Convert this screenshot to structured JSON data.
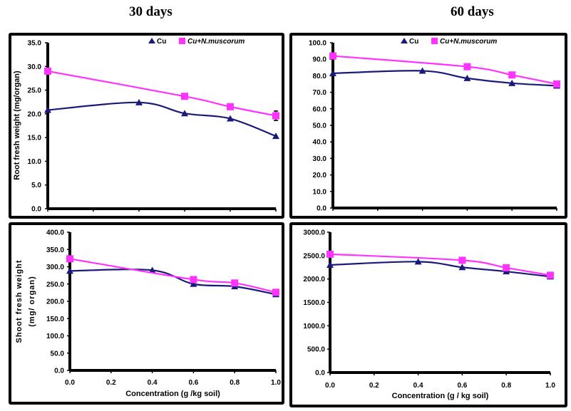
{
  "column_titles": [
    "30 days",
    "60 days"
  ],
  "colors": {
    "cu": "#1a1a7a",
    "cu_nm": "#ff33ff",
    "axis": "#000000"
  },
  "chart_data": [
    {
      "id": "root-30",
      "type": "line",
      "title": "30 days",
      "xlabel": "",
      "ylabel": "Root fresh weight (mg/organ)",
      "xlim": [
        0,
        1.0
      ],
      "ylim": [
        0,
        35
      ],
      "yticks": [
        0,
        5,
        10,
        15,
        20,
        25,
        30,
        35
      ],
      "ytick_labels": [
        "0.0",
        "5.0",
        "10.0",
        "15.0",
        "20.0",
        "25.0",
        "30.0",
        "35.0"
      ],
      "xticks": [
        0,
        0.2,
        0.4,
        0.6,
        0.8,
        1.0
      ],
      "xtick_labels": [],
      "grid": false,
      "legend": {
        "position": "top-right",
        "entries": [
          "Cu",
          "Cu+N.muscorum"
        ]
      },
      "series": [
        {
          "name": "Cu",
          "marker": "triangle",
          "x": [
            0,
            0.4,
            0.6,
            0.8,
            1.0
          ],
          "values": [
            20.8,
            22.4,
            20.1,
            19.0,
            15.3
          ]
        },
        {
          "name": "Cu+N.muscorum",
          "marker": "square",
          "x": [
            0,
            0.6,
            0.8,
            1.0
          ],
          "values": [
            29.0,
            23.7,
            21.5,
            19.6
          ],
          "error": [
            0,
            0,
            0,
            1.0
          ]
        }
      ]
    },
    {
      "id": "root-60",
      "type": "line",
      "title": "60 days",
      "xlabel": "",
      "ylabel": "",
      "xlim": [
        0,
        1.0
      ],
      "ylim": [
        0,
        100
      ],
      "yticks": [
        0,
        10,
        20,
        30,
        40,
        50,
        60,
        70,
        80,
        90,
        100
      ],
      "ytick_labels": [
        "0.0",
        "10.0",
        "20.0",
        "30.0",
        "40.0",
        "50.0",
        "60.0",
        "70.0",
        "80.0",
        "90.0",
        "100.0"
      ],
      "xticks": [
        0,
        0.2,
        0.4,
        0.6,
        0.8,
        1.0
      ],
      "xtick_labels": [],
      "grid": false,
      "legend": {
        "position": "top-right",
        "entries": [
          "Cu",
          "Cu+N.muscorum"
        ]
      },
      "series": [
        {
          "name": "Cu",
          "marker": "triangle",
          "x": [
            0,
            0.4,
            0.6,
            0.8,
            1.0
          ],
          "values": [
            81.5,
            83.0,
            78.5,
            75.5,
            74.0
          ]
        },
        {
          "name": "Cu+N.muscorum",
          "marker": "square",
          "x": [
            0,
            0.6,
            0.8,
            1.0
          ],
          "values": [
            92.0,
            85.5,
            80.5,
            75.0
          ]
        }
      ]
    },
    {
      "id": "shoot-30",
      "type": "line",
      "title": "",
      "xlabel": "Concentration (g /kg soil)",
      "ylabel": "Shoot fresh weight (mg/ organ)",
      "xlim": [
        0,
        1.0
      ],
      "ylim": [
        0,
        400
      ],
      "yticks": [
        0,
        50,
        100,
        150,
        200,
        250,
        300,
        350,
        400
      ],
      "ytick_labels": [
        "0.0",
        "50.0",
        "100.0",
        "150.0",
        "200.0",
        "250.0",
        "300.0",
        "350.0",
        "400.0"
      ],
      "xticks": [
        0,
        0.2,
        0.4,
        0.6,
        0.8,
        1.0
      ],
      "xtick_labels": [
        "0.0",
        "0.2",
        "0.4",
        "0.6",
        "0.8",
        "1.0"
      ],
      "grid": false,
      "legend": null,
      "series": [
        {
          "name": "Cu",
          "marker": "triangle",
          "x": [
            0,
            0.4,
            0.6,
            0.8,
            1.0
          ],
          "values": [
            288,
            290,
            250,
            243,
            220
          ]
        },
        {
          "name": "Cu+N.muscorum",
          "marker": "square",
          "x": [
            0,
            0.6,
            0.8,
            1.0
          ],
          "values": [
            323,
            263,
            253,
            226
          ]
        }
      ]
    },
    {
      "id": "shoot-60",
      "type": "line",
      "title": "",
      "xlabel": "Concentration (g / kg soil)",
      "ylabel": "",
      "xlim": [
        0,
        1.0
      ],
      "ylim": [
        0,
        3000
      ],
      "yticks": [
        0,
        500,
        1000,
        1500,
        2000,
        2500,
        3000
      ],
      "ytick_labels": [
        "0.0",
        "500.0",
        "1000.0",
        "1500.0",
        "2000.0",
        "2500.0",
        "3000.0"
      ],
      "xticks": [
        0,
        0.2,
        0.4,
        0.6,
        0.8,
        1.0
      ],
      "xtick_labels": [
        "0.0",
        "0.2",
        "0.4",
        "0.6",
        "0.8",
        "1.0"
      ],
      "grid": false,
      "legend": null,
      "series": [
        {
          "name": "Cu",
          "marker": "triangle",
          "x": [
            0,
            0.4,
            0.6,
            0.8,
            1.0
          ],
          "values": [
            2300,
            2370,
            2250,
            2160,
            2050
          ]
        },
        {
          "name": "Cu+N.muscorum",
          "marker": "square",
          "x": [
            0,
            0.6,
            0.8,
            1.0
          ],
          "values": [
            2530,
            2400,
            2240,
            2080
          ]
        }
      ]
    }
  ]
}
